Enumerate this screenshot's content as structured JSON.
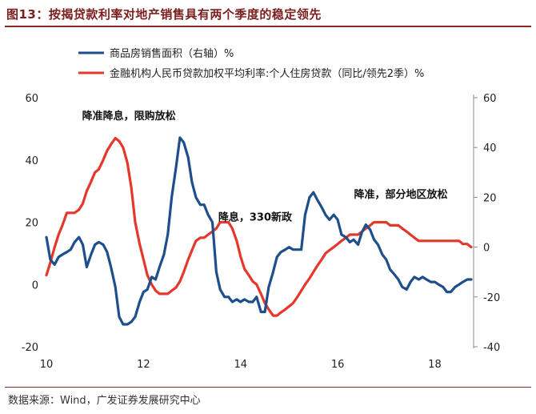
{
  "title": "图13：按揭贷款利率对地产销售具有两个季度的稳定领先",
  "source": "数据来源：Wind，广发证券发展研究中心",
  "chart_data": {
    "type": "line",
    "colors": {
      "sales": "#1f4e8c",
      "rate": "#e5382c"
    },
    "left_axis": {
      "ylim": [
        -20,
        60
      ],
      "ticks": [
        -20,
        0,
        20,
        40,
        60
      ]
    },
    "right_axis": {
      "ylim": [
        -40,
        60
      ],
      "ticks": [
        -40,
        -20,
        0,
        20,
        40,
        60
      ]
    },
    "x_axis": {
      "xlim": [
        2010,
        2018.8
      ],
      "ticks": [
        2010,
        2012,
        2014,
        2016,
        2018
      ],
      "tick_labels": [
        "10",
        "12",
        "14",
        "16",
        "18"
      ]
    },
    "legend_position": "top",
    "series": [
      {
        "name": "商品房销售面积（右轴）%",
        "key": "sales",
        "axis": "right",
        "x": [
          2010.0,
          2010.08,
          2010.17,
          2010.25,
          2010.33,
          2010.42,
          2010.5,
          2010.58,
          2010.67,
          2010.75,
          2010.83,
          2010.92,
          2011.0,
          2011.08,
          2011.17,
          2011.25,
          2011.33,
          2011.42,
          2011.5,
          2011.58,
          2011.67,
          2011.75,
          2011.83,
          2011.92,
          2012.0,
          2012.08,
          2012.17,
          2012.25,
          2012.33,
          2012.42,
          2012.5,
          2012.58,
          2012.67,
          2012.75,
          2012.83,
          2012.92,
          2013.0,
          2013.08,
          2013.17,
          2013.25,
          2013.33,
          2013.42,
          2013.5,
          2013.58,
          2013.67,
          2013.75,
          2013.83,
          2013.92,
          2014.0,
          2014.08,
          2014.17,
          2014.25,
          2014.33,
          2014.42,
          2014.5,
          2014.58,
          2014.67,
          2014.75,
          2014.83,
          2014.92,
          2015.0,
          2015.08,
          2015.17,
          2015.25,
          2015.33,
          2015.42,
          2015.5,
          2015.58,
          2015.67,
          2015.75,
          2015.83,
          2015.92,
          2016.0,
          2016.08,
          2016.17,
          2016.25,
          2016.33,
          2016.42,
          2016.5,
          2016.58,
          2016.67,
          2016.75,
          2016.83,
          2016.92,
          2017.0,
          2017.08,
          2017.17,
          2017.25,
          2017.33,
          2017.42,
          2017.5,
          2017.58,
          2017.67,
          2017.75,
          2017.83,
          2017.92,
          2018.0,
          2018.08,
          2018.17,
          2018.25,
          2018.33,
          2018.42,
          2018.5,
          2018.58,
          2018.67,
          2018.75
        ],
        "values": [
          4,
          -5,
          -7,
          -4,
          -3,
          -2,
          -1,
          2,
          4,
          1,
          -8,
          -3,
          1,
          2,
          1,
          -2,
          -8,
          -16,
          -28,
          -31,
          -31,
          -30,
          -28,
          -22,
          -18,
          -17,
          -12,
          -13,
          -8,
          -3,
          5,
          20,
          32,
          44,
          42,
          36,
          26,
          20,
          17,
          17,
          13,
          10,
          -10,
          -17,
          -20,
          -20,
          -22,
          -21,
          -22,
          -21,
          -22,
          -22,
          -20,
          -26,
          -26,
          -16,
          -10,
          -4,
          -2,
          -1,
          0,
          -1,
          -1,
          -1,
          13,
          20,
          22,
          19,
          16,
          13,
          11,
          13,
          11,
          5,
          4,
          2,
          3,
          1,
          6,
          9,
          7,
          3,
          1,
          -3,
          -5,
          -9,
          -11,
          -13,
          -16,
          -17,
          -14,
          -12,
          -13,
          -12,
          -13,
          -14,
          -14,
          -15,
          -16,
          -18,
          -18,
          -16,
          -15,
          -14,
          -13,
          -13
        ],
        "display_values_left": [
          15.0,
          8.0,
          6.5,
          9.0,
          9.5,
          10.5,
          11.0,
          13.0,
          14.5,
          12.5,
          6.5,
          9.5,
          12.5,
          13.5,
          13.0,
          10.5,
          6.0,
          0.0,
          -9.5,
          -12.0,
          -11.5,
          -11.0,
          -10.0,
          -5.0,
          -2.0,
          -1.0,
          2.5,
          2.0,
          5.5,
          9.5,
          15.5,
          28.0,
          37.5,
          51.0,
          37.5,
          37.0,
          29.5,
          25.5,
          23.5,
          23.0,
          20.0,
          17.5,
          2.0,
          -3.0,
          -5.5,
          -6.0,
          -7.0,
          -7.0,
          -7.5,
          -7.0,
          -7.5,
          -7.5,
          -6.0,
          -10.5,
          -10.0,
          -3.0,
          1.5,
          6.5,
          8.0,
          7.5,
          8.0,
          7.0,
          7.0,
          7.0,
          17.5,
          23.5,
          25.0,
          22.5,
          20.5,
          18.5,
          17.5,
          18.0,
          16.0,
          12.0,
          10.5,
          9.0,
          9.5,
          8.0,
          12.5,
          15.0,
          13.5,
          10.5,
          8.5,
          5.5,
          4.0,
          0.5,
          -1.0,
          -2.5,
          -5.0,
          -5.5,
          -3.0,
          -1.5,
          -2.5,
          -2.0,
          -2.0,
          -3.0,
          -3.0,
          -4.0,
          -5.0,
          -6.5,
          -7.0,
          -5.0,
          -4.5,
          -3.5,
          -2.5,
          -2.5
        ]
      },
      {
        "name": "金融机构人民币贷款加权平均利率:个人住房贷款（同比/领先2季）%",
        "key": "rate",
        "axis": "left",
        "x": [
          2010.0,
          2010.08,
          2010.17,
          2010.25,
          2010.33,
          2010.42,
          2010.5,
          2010.58,
          2010.67,
          2010.75,
          2010.83,
          2010.92,
          2011.0,
          2011.08,
          2011.17,
          2011.25,
          2011.33,
          2011.42,
          2011.5,
          2011.58,
          2011.67,
          2011.75,
          2011.83,
          2011.92,
          2012.0,
          2012.08,
          2012.17,
          2012.25,
          2012.33,
          2012.42,
          2012.5,
          2012.58,
          2012.67,
          2012.75,
          2012.83,
          2012.92,
          2013.0,
          2013.08,
          2013.17,
          2013.25,
          2013.33,
          2013.42,
          2013.5,
          2013.58,
          2013.67,
          2013.75,
          2013.83,
          2013.92,
          2014.0,
          2014.08,
          2014.17,
          2014.25,
          2014.33,
          2014.42,
          2014.5,
          2014.58,
          2014.67,
          2014.75,
          2014.83,
          2014.92,
          2015.0,
          2015.08,
          2015.17,
          2015.25,
          2015.33,
          2015.42,
          2015.5,
          2015.58,
          2015.67,
          2015.75,
          2015.83,
          2015.92,
          2016.0,
          2016.08,
          2016.17,
          2016.25,
          2016.33,
          2016.42,
          2016.5,
          2016.58,
          2016.67,
          2016.75,
          2016.83,
          2016.92,
          2017.0,
          2017.08,
          2017.17,
          2017.25,
          2017.33,
          2017.42,
          2017.5,
          2017.58,
          2017.67,
          2017.75,
          2017.83,
          2017.92,
          2018.0,
          2018.08,
          2018.17,
          2018.25,
          2018.33,
          2018.42,
          2018.5,
          2018.58,
          2018.67,
          2018.75
        ],
        "values": [
          3,
          7,
          12,
          16,
          19,
          23,
          23,
          23,
          24,
          26,
          30,
          33,
          36,
          37,
          40,
          43,
          45,
          47,
          46,
          44,
          39,
          31,
          20,
          13,
          8,
          3,
          0,
          -2,
          -3,
          -3,
          -3,
          -2,
          -1,
          1,
          4,
          8,
          11,
          14,
          15,
          15,
          16,
          17,
          18,
          20,
          20,
          20,
          18,
          14,
          9,
          5,
          3,
          1,
          0,
          -3,
          -6,
          -8,
          -10,
          -10,
          -9,
          -8,
          -7,
          -6,
          -4,
          -2,
          0,
          2,
          4,
          6,
          8,
          10,
          11,
          12,
          13,
          14,
          15,
          16,
          16,
          16,
          17,
          18,
          19,
          20,
          20,
          20,
          20,
          19,
          19,
          19,
          18,
          17,
          16,
          15,
          14,
          14,
          14,
          14,
          14,
          14,
          14,
          14,
          14,
          14,
          14,
          13,
          13,
          12
        ]
      }
    ],
    "annotations": [
      {
        "text": "降准降息，限购放松",
        "x": 2011.7,
        "y": 53
      },
      {
        "text": "降息，330新政",
        "x": 2014.3,
        "y": 20.5
      },
      {
        "text": "降准，部分地区放松",
        "x": 2017.3,
        "y": 27.8
      }
    ]
  }
}
